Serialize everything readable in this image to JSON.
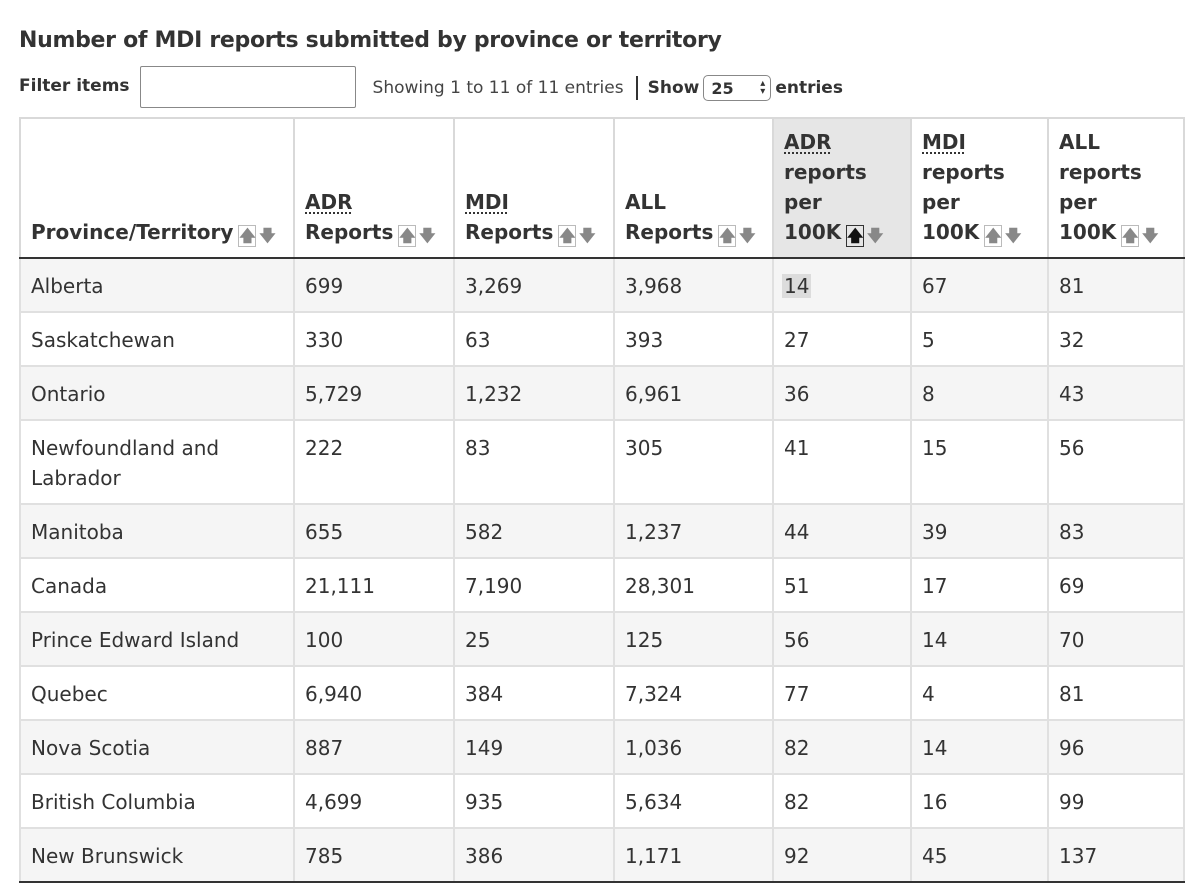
{
  "table_title": "Number of MDI reports submitted by province or territory",
  "filter": {
    "label": "Filter items",
    "value": ""
  },
  "info_text": "Showing 1 to 11 of 11 entries",
  "length": {
    "show_label": "Show",
    "selected": "25",
    "entries_label": "entries"
  },
  "columns": [
    {
      "lines": [
        "Province/Territory"
      ]
    },
    {
      "abbr": "ADR",
      "lines": [
        "Reports"
      ]
    },
    {
      "abbr": "MDI",
      "lines": [
        "Reports"
      ]
    },
    {
      "lead": "ALL",
      "lines": [
        "Reports"
      ]
    },
    {
      "abbr": "ADR",
      "lines": [
        "reports",
        "per",
        "100K"
      ]
    },
    {
      "abbr": "MDI",
      "lines": [
        "reports",
        "per",
        "100K"
      ]
    },
    {
      "lead": "ALL",
      "lines": [
        "reports",
        "per",
        "100K"
      ]
    }
  ],
  "sort_icons": {
    "up": "sort-ascending-arrow-icon",
    "down": "sort-descending-arrow-icon"
  },
  "rows": [
    [
      "Alberta",
      "699",
      "3,269",
      "3,968",
      "14",
      "67",
      "81"
    ],
    [
      "Saskatchewan",
      "330",
      "63",
      "393",
      "27",
      "5",
      "32"
    ],
    [
      "Ontario",
      "5,729",
      "1,232",
      "6,961",
      "36",
      "8",
      "43"
    ],
    [
      "Newfoundland and Labrador",
      "222",
      "83",
      "305",
      "41",
      "15",
      "56"
    ],
    [
      "Manitoba",
      "655",
      "582",
      "1,237",
      "44",
      "39",
      "83"
    ],
    [
      "Canada",
      "21,111",
      "7,190",
      "28,301",
      "51",
      "17",
      "69"
    ],
    [
      "Prince Edward Island",
      "100",
      "25",
      "125",
      "56",
      "14",
      "70"
    ],
    [
      "Quebec",
      "6,940",
      "384",
      "7,324",
      "77",
      "4",
      "81"
    ],
    [
      "Nova Scotia",
      "887",
      "149",
      "1,036",
      "82",
      "14",
      "96"
    ],
    [
      "British Columbia",
      "4,699",
      "935",
      "5,634",
      "82",
      "16",
      "99"
    ],
    [
      "New Brunswick",
      "785",
      "386",
      "1,171",
      "92",
      "45",
      "137"
    ]
  ]
}
